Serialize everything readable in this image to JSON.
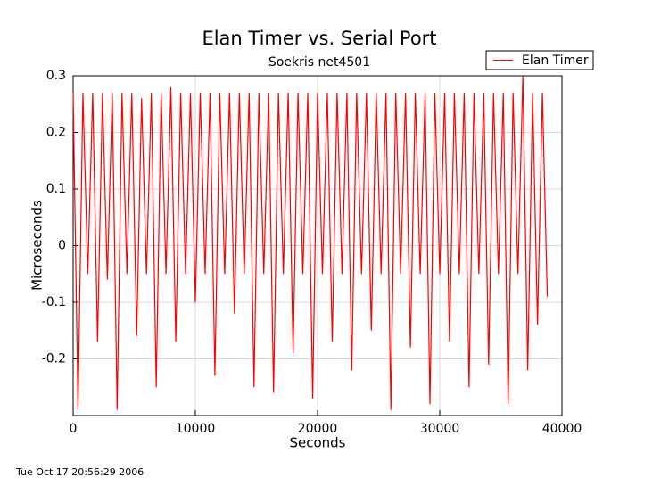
{
  "chart_data": {
    "type": "line",
    "title": "Elan Timer vs. Serial Port",
    "subtitle": "Soekris net4501",
    "x_label": "Seconds",
    "y_label": "Microseconds",
    "footer": "Tue Oct 17 20:56:29 2006",
    "legend": "upper right",
    "grid": true,
    "xlim": [
      0,
      40000
    ],
    "xticks": [
      0,
      10000,
      20000,
      30000,
      40000
    ],
    "ylim": [
      -0.3,
      0.3
    ],
    "yticks": [
      -0.2,
      -0.1,
      0,
      0.1,
      0.2,
      0.3
    ],
    "x": [
      0,
      400,
      800,
      1200,
      1600,
      2000,
      2400,
      2800,
      3200,
      3600,
      4000,
      4400,
      4800,
      5200,
      5600,
      6000,
      6400,
      6800,
      7200,
      7600,
      8000,
      8400,
      8800,
      9200,
      9600,
      10000,
      10400,
      10800,
      11200,
      11600,
      12000,
      12400,
      12800,
      13200,
      13600,
      14000,
      14400,
      14800,
      15200,
      15600,
      16000,
      16400,
      16800,
      17200,
      17600,
      18000,
      18400,
      18800,
      19200,
      19600,
      20000,
      20400,
      20800,
      21200,
      21600,
      22000,
      22400,
      22800,
      23200,
      23600,
      24000,
      24400,
      24800,
      25200,
      25600,
      26000,
      26400,
      26800,
      27200,
      27600,
      28000,
      28400,
      28800,
      29200,
      29600,
      30000,
      30400,
      30800,
      31200,
      31600,
      32000,
      32400,
      32800,
      33200,
      33600,
      34000,
      34400,
      34800,
      35200,
      35600,
      36000,
      36400,
      36800,
      37200,
      37600,
      38000,
      38400,
      38800
    ],
    "series": [
      {
        "name": "Elan Timer",
        "color": "#ff0000",
        "values": [
          0.27,
          -0.29,
          0.27,
          -0.05,
          0.27,
          -0.17,
          0.27,
          -0.06,
          0.27,
          -0.29,
          0.27,
          -0.05,
          0.27,
          -0.16,
          0.26,
          -0.05,
          0.27,
          -0.25,
          0.27,
          -0.05,
          0.28,
          -0.17,
          0.27,
          -0.05,
          0.27,
          -0.1,
          0.27,
          -0.05,
          0.27,
          -0.23,
          0.27,
          -0.05,
          0.27,
          -0.12,
          0.27,
          -0.05,
          0.27,
          -0.25,
          0.27,
          -0.05,
          0.27,
          -0.26,
          0.27,
          -0.05,
          0.27,
          -0.19,
          0.27,
          -0.05,
          0.27,
          -0.27,
          0.27,
          -0.05,
          0.27,
          -0.17,
          0.27,
          -0.05,
          0.27,
          -0.22,
          0.27,
          -0.05,
          0.27,
          -0.15,
          0.27,
          -0.05,
          0.27,
          -0.29,
          0.27,
          -0.05,
          0.27,
          -0.18,
          0.27,
          -0.05,
          0.27,
          -0.28,
          0.27,
          -0.05,
          0.27,
          -0.17,
          0.27,
          -0.05,
          0.27,
          -0.25,
          0.27,
          -0.05,
          0.27,
          -0.21,
          0.27,
          -0.05,
          0.27,
          -0.28,
          0.27,
          -0.05,
          0.3,
          -0.22,
          0.27,
          -0.14,
          0.27,
          -0.09
        ]
      }
    ]
  }
}
